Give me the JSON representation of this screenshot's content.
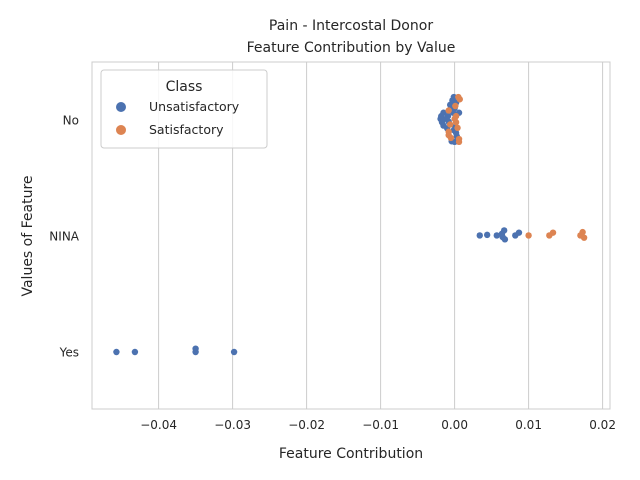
{
  "chart_data": {
    "type": "scatter",
    "title": "Pain - Intercostal Donor",
    "subtitle": "Feature Contribution by Value",
    "xlabel": "Feature Contribution",
    "ylabel": "Values of Feature",
    "xlim": [
      -0.049,
      0.021
    ],
    "xticks": [
      -0.04,
      -0.03,
      -0.02,
      -0.01,
      0.0,
      0.01,
      0.02
    ],
    "xtick_labels": [
      "−0.04",
      "−0.03",
      "−0.02",
      "−0.01",
      "0.00",
      "0.01",
      "0.02"
    ],
    "categories": [
      "No",
      "NINA",
      "Yes"
    ],
    "grid": "vertical",
    "legend": {
      "title": "Class",
      "placement": "top-left",
      "entries": [
        {
          "name": "Unsatisfactory",
          "color": "#4c72b0"
        },
        {
          "name": "Satisfactory",
          "color": "#dd8452"
        }
      ]
    },
    "series": [
      {
        "name": "Unsatisfactory",
        "color": "#4c72b0",
        "points": [
          {
            "category": "No",
            "x": -0.0001,
            "offset": 0.41
          },
          {
            "category": "No",
            "x": -0.0003,
            "offset": 0.35
          },
          {
            "category": "No",
            "x": 0.0002,
            "offset": 0.31
          },
          {
            "category": "No",
            "x": -0.0006,
            "offset": 0.27
          },
          {
            "category": "No",
            "x": 0.0,
            "offset": 0.21
          },
          {
            "category": "No",
            "x": -0.0004,
            "offset": 0.17
          },
          {
            "category": "No",
            "x": -0.0015,
            "offset": 0.13
          },
          {
            "category": "No",
            "x": -0.0002,
            "offset": 0.13
          },
          {
            "category": "No",
            "x": 0.0006,
            "offset": 0.13
          },
          {
            "category": "No",
            "x": -0.0018,
            "offset": 0.07
          },
          {
            "category": "No",
            "x": -0.0009,
            "offset": 0.07
          },
          {
            "category": "No",
            "x": -0.0019,
            "offset": 0.02
          },
          {
            "category": "No",
            "x": -0.0011,
            "offset": 0.02
          },
          {
            "category": "No",
            "x": -0.0017,
            "offset": -0.04
          },
          {
            "category": "No",
            "x": -0.0008,
            "offset": -0.03
          },
          {
            "category": "No",
            "x": -0.0015,
            "offset": -0.1
          },
          {
            "category": "No",
            "x": 0.0001,
            "offset": -0.12
          },
          {
            "category": "No",
            "x": -0.001,
            "offset": -0.15
          },
          {
            "category": "No",
            "x": -0.0001,
            "offset": -0.18
          },
          {
            "category": "No",
            "x": 0.0002,
            "offset": -0.23
          },
          {
            "category": "No",
            "x": 0.0003,
            "offset": -0.29
          },
          {
            "category": "No",
            "x": -0.0004,
            "offset": -0.38
          },
          {
            "category": "No",
            "x": 0.0,
            "offset": -0.39
          },
          {
            "category": "NINA",
            "x": 0.0067,
            "offset": 0.1
          },
          {
            "category": "NINA",
            "x": 0.0087,
            "offset": 0.06
          },
          {
            "category": "NINA",
            "x": 0.0064,
            "offset": 0.04
          },
          {
            "category": "NINA",
            "x": 0.0034,
            "offset": 0.01
          },
          {
            "category": "NINA",
            "x": 0.0044,
            "offset": 0.02
          },
          {
            "category": "NINA",
            "x": 0.0057,
            "offset": 0.01
          },
          {
            "category": "NINA",
            "x": 0.0082,
            "offset": 0.01
          },
          {
            "category": "NINA",
            "x": 0.0065,
            "offset": -0.02
          },
          {
            "category": "NINA",
            "x": 0.0068,
            "offset": -0.06
          },
          {
            "category": "Yes",
            "x": -0.0457,
            "offset": 0.0
          },
          {
            "category": "Yes",
            "x": -0.0432,
            "offset": 0.0
          },
          {
            "category": "Yes",
            "x": -0.035,
            "offset": 0.06
          },
          {
            "category": "Yes",
            "x": -0.035,
            "offset": 0.0
          },
          {
            "category": "Yes",
            "x": -0.0298,
            "offset": 0.0
          }
        ]
      },
      {
        "name": "Satisfactory",
        "color": "#dd8452",
        "points": [
          {
            "category": "No",
            "x": 0.0005,
            "offset": 0.41
          },
          {
            "category": "No",
            "x": 0.0007,
            "offset": 0.37
          },
          {
            "category": "No",
            "x": 0.0001,
            "offset": 0.25
          },
          {
            "category": "No",
            "x": -0.0008,
            "offset": 0.17
          },
          {
            "category": "No",
            "x": 0.0002,
            "offset": 0.07
          },
          {
            "category": "No",
            "x": 0.0,
            "offset": 0.02
          },
          {
            "category": "No",
            "x": 0.0002,
            "offset": -0.04
          },
          {
            "category": "No",
            "x": -0.0006,
            "offset": -0.08
          },
          {
            "category": "No",
            "x": 0.0004,
            "offset": -0.14
          },
          {
            "category": "No",
            "x": -0.0008,
            "offset": -0.21
          },
          {
            "category": "No",
            "x": -0.0008,
            "offset": -0.27
          },
          {
            "category": "No",
            "x": -0.0005,
            "offset": -0.32
          },
          {
            "category": "No",
            "x": 0.0006,
            "offset": -0.34
          },
          {
            "category": "No",
            "x": 0.0006,
            "offset": -0.39
          },
          {
            "category": "NINA",
            "x": 0.0133,
            "offset": 0.06
          },
          {
            "category": "NINA",
            "x": 0.0173,
            "offset": 0.07
          },
          {
            "category": "NINA",
            "x": 0.01,
            "offset": 0.01
          },
          {
            "category": "NINA",
            "x": 0.0128,
            "offset": 0.01
          },
          {
            "category": "NINA",
            "x": 0.017,
            "offset": 0.01
          },
          {
            "category": "NINA",
            "x": 0.0175,
            "offset": -0.03
          }
        ]
      }
    ]
  }
}
